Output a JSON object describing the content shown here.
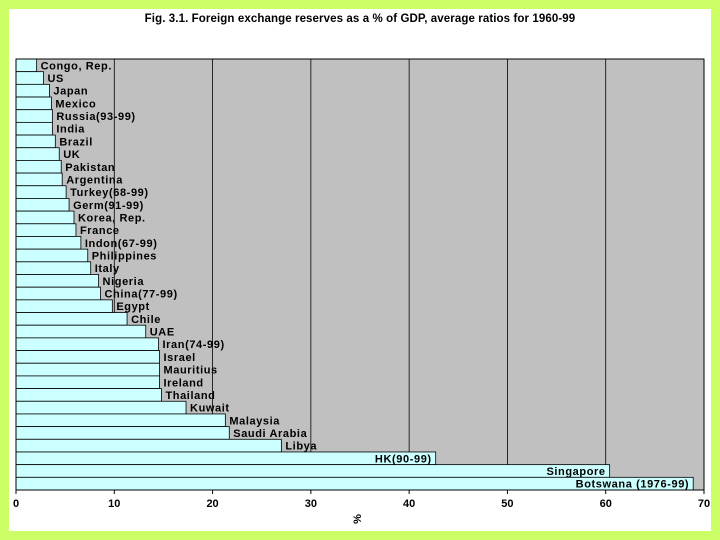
{
  "chart_data": {
    "type": "bar",
    "orientation": "horizontal",
    "title": "Fig. 3.1. Foreign exchange reserves as a % of GDP, average ratios for 1960-99",
    "xlabel": "%",
    "ylabel": "",
    "xlim": [
      0,
      70
    ],
    "xticks": [
      0,
      10,
      20,
      30,
      40,
      50,
      60,
      70
    ],
    "grid": true,
    "categories": [
      "Congo, Rep.",
      "US",
      "Japan",
      "Mexico",
      "Russia(93-99)",
      "India",
      "Brazil",
      "UK",
      "Pakistan",
      "Argentina",
      "Turkey(68-99)",
      "Germ(91-99)",
      "Korea, Rep.",
      "France",
      "Indon(67-99)",
      "Philippines",
      "Italy",
      "Nigeria",
      "China(77-99)",
      "Egypt",
      "Chile",
      "UAE",
      "Iran(74-99)",
      "Israel",
      "Mauritius",
      "Ireland",
      "Thailand",
      "Kuwait",
      "Malaysia",
      "Saudi Arabia",
      "Libya",
      "HK(90-99)",
      "Singapore",
      "Botswana (1976-99)"
    ],
    "values": [
      2.1,
      2.8,
      3.4,
      3.6,
      3.7,
      3.7,
      4.0,
      4.4,
      4.6,
      4.7,
      5.1,
      5.4,
      5.9,
      6.1,
      6.6,
      7.3,
      7.6,
      8.4,
      8.6,
      9.8,
      11.3,
      13.2,
      14.5,
      14.6,
      14.6,
      14.6,
      14.8,
      17.3,
      21.3,
      21.7,
      27.0,
      42.7,
      60.4,
      68.9
    ],
    "label_position": [
      "outside",
      "outside",
      "outside",
      "outside",
      "outside",
      "outside",
      "outside",
      "outside",
      "outside",
      "outside",
      "outside",
      "outside",
      "outside",
      "outside",
      "outside",
      "outside",
      "outside",
      "outside",
      "outside",
      "outside",
      "outside",
      "outside",
      "outside",
      "outside",
      "outside",
      "outside",
      "outside",
      "outside",
      "outside",
      "outside",
      "outside",
      "inside",
      "inside",
      "inside"
    ]
  },
  "colors": {
    "frame": "#ccff66",
    "plot_background": "#c0c0c0",
    "bar_fill": "#ccffff",
    "bar_stroke": "#000000",
    "grid": "#000000"
  }
}
